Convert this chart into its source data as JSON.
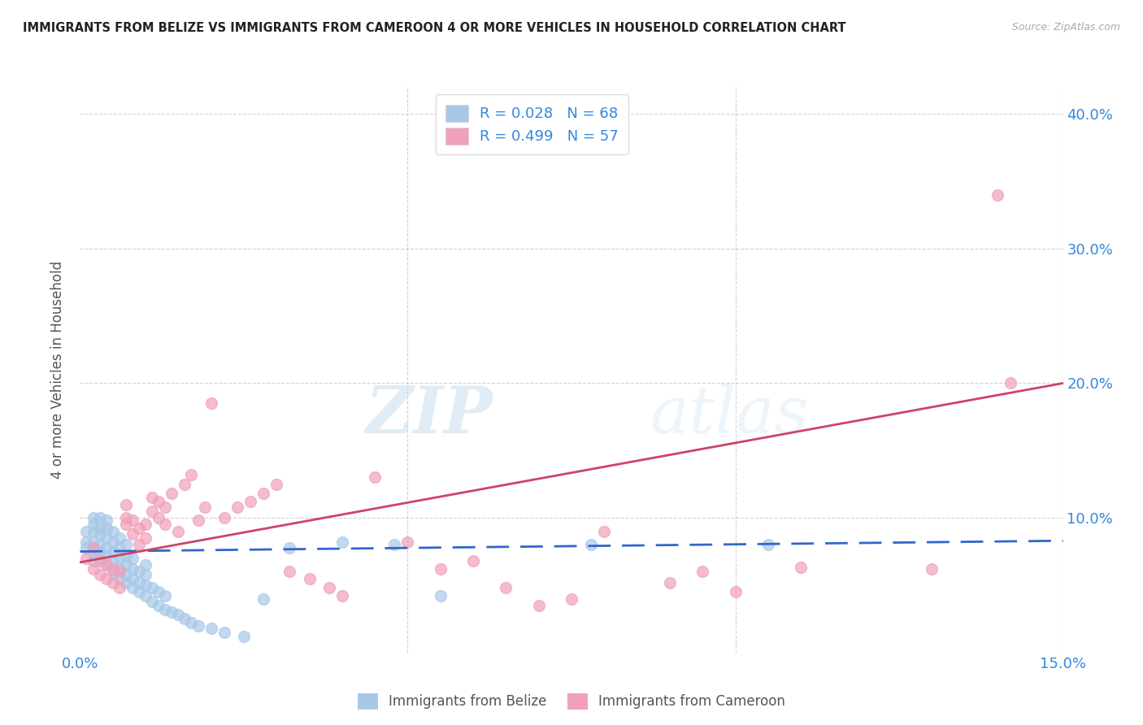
{
  "title": "IMMIGRANTS FROM BELIZE VS IMMIGRANTS FROM CAMEROON 4 OR MORE VEHICLES IN HOUSEHOLD CORRELATION CHART",
  "source": "Source: ZipAtlas.com",
  "ylabel": "4 or more Vehicles in Household",
  "xlim": [
    0.0,
    0.15
  ],
  "ylim": [
    0.0,
    0.42
  ],
  "belize_color": "#a8c8e8",
  "belize_line_color": "#3366cc",
  "cameroon_color": "#f0a0b8",
  "cameroon_line_color": "#cc4466",
  "belize_R": 0.028,
  "belize_N": 68,
  "cameroon_R": 0.499,
  "cameroon_N": 57,
  "legend_text_color": "#3388dd",
  "watermark_zip": "ZIP",
  "watermark_atlas": "atlas",
  "background_color": "#ffffff",
  "grid_color": "#cccccc",
  "belize_x": [
    0.001,
    0.001,
    0.001,
    0.002,
    0.002,
    0.002,
    0.002,
    0.002,
    0.002,
    0.003,
    0.003,
    0.003,
    0.003,
    0.003,
    0.003,
    0.004,
    0.004,
    0.004,
    0.004,
    0.004,
    0.004,
    0.005,
    0.005,
    0.005,
    0.005,
    0.005,
    0.006,
    0.006,
    0.006,
    0.006,
    0.006,
    0.007,
    0.007,
    0.007,
    0.007,
    0.007,
    0.008,
    0.008,
    0.008,
    0.008,
    0.009,
    0.009,
    0.009,
    0.01,
    0.01,
    0.01,
    0.01,
    0.011,
    0.011,
    0.012,
    0.012,
    0.013,
    0.013,
    0.014,
    0.015,
    0.016,
    0.017,
    0.018,
    0.02,
    0.022,
    0.025,
    0.028,
    0.032,
    0.04,
    0.048,
    0.055,
    0.078,
    0.105
  ],
  "belize_y": [
    0.078,
    0.082,
    0.09,
    0.068,
    0.075,
    0.082,
    0.09,
    0.095,
    0.1,
    0.07,
    0.075,
    0.08,
    0.088,
    0.092,
    0.1,
    0.065,
    0.072,
    0.078,
    0.085,
    0.092,
    0.098,
    0.06,
    0.068,
    0.075,
    0.082,
    0.09,
    0.055,
    0.062,
    0.07,
    0.078,
    0.085,
    0.052,
    0.058,
    0.065,
    0.072,
    0.08,
    0.048,
    0.055,
    0.062,
    0.07,
    0.045,
    0.052,
    0.06,
    0.042,
    0.05,
    0.058,
    0.065,
    0.038,
    0.048,
    0.035,
    0.045,
    0.032,
    0.042,
    0.03,
    0.028,
    0.025,
    0.022,
    0.02,
    0.018,
    0.015,
    0.012,
    0.04,
    0.078,
    0.082,
    0.08,
    0.042,
    0.08,
    0.08
  ],
  "cameroon_x": [
    0.001,
    0.002,
    0.002,
    0.003,
    0.003,
    0.004,
    0.004,
    0.005,
    0.005,
    0.006,
    0.006,
    0.007,
    0.007,
    0.007,
    0.008,
    0.008,
    0.009,
    0.009,
    0.01,
    0.01,
    0.011,
    0.011,
    0.012,
    0.012,
    0.013,
    0.013,
    0.014,
    0.015,
    0.016,
    0.017,
    0.018,
    0.019,
    0.02,
    0.022,
    0.024,
    0.026,
    0.028,
    0.03,
    0.032,
    0.035,
    0.038,
    0.04,
    0.045,
    0.05,
    0.055,
    0.06,
    0.065,
    0.07,
    0.075,
    0.08,
    0.09,
    0.095,
    0.1,
    0.11,
    0.13,
    0.14,
    0.142
  ],
  "cameroon_y": [
    0.07,
    0.062,
    0.078,
    0.058,
    0.068,
    0.055,
    0.065,
    0.052,
    0.062,
    0.048,
    0.06,
    0.095,
    0.1,
    0.11,
    0.088,
    0.098,
    0.08,
    0.092,
    0.085,
    0.095,
    0.105,
    0.115,
    0.1,
    0.112,
    0.095,
    0.108,
    0.118,
    0.09,
    0.125,
    0.132,
    0.098,
    0.108,
    0.185,
    0.1,
    0.108,
    0.112,
    0.118,
    0.125,
    0.06,
    0.055,
    0.048,
    0.042,
    0.13,
    0.082,
    0.062,
    0.068,
    0.048,
    0.035,
    0.04,
    0.09,
    0.052,
    0.06,
    0.045,
    0.063,
    0.062,
    0.34,
    0.2
  ]
}
